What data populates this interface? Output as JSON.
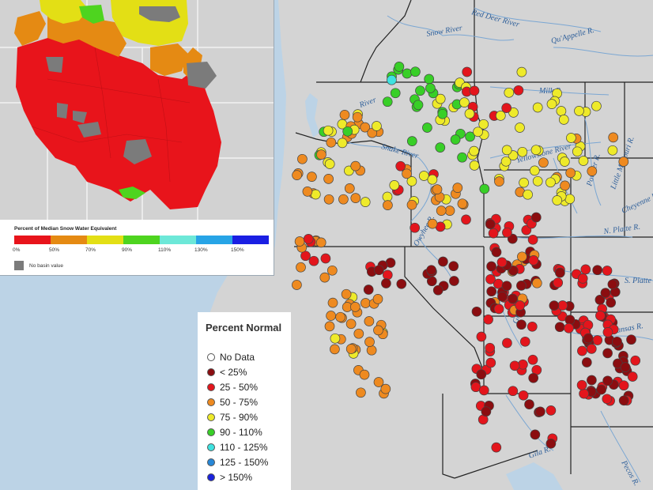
{
  "inset": {
    "title": "Percent of Median Snow Water Equivalent",
    "scale": [
      {
        "label": "0%",
        "color": "#e8141b"
      },
      {
        "label": "50%",
        "color": "#e58a13"
      },
      {
        "label": "70%",
        "color": "#e3df15"
      },
      {
        "label": "90%",
        "color": "#4ed41f"
      },
      {
        "label": "110%",
        "color": "#6de8d8"
      },
      {
        "label": "130%",
        "color": "#27a4e6"
      },
      {
        "label": "150%",
        "color": "#1a1fe3"
      }
    ],
    "no_basin_label": "No basin value",
    "no_basin_color": "#7b7b7b"
  },
  "map": {
    "rivers": [
      "Snow River",
      "Red Deer River",
      "Qu'Appelle R.",
      "Milk R.",
      "Snake River",
      "Yellowstone River",
      "Little Missouri R.",
      "Powder R.",
      "Cheyenne R.",
      "N. Platte R.",
      "S. Platte R.",
      "Owyhee R.",
      "Green R.",
      "Gila R.",
      "Kansas R.",
      "Pecos R.",
      "River"
    ]
  },
  "legend": {
    "title": "Percent Normal",
    "items": [
      {
        "label": "No Data",
        "color": "#ffffff"
      },
      {
        "label": "< 25%",
        "color": "#8b0d10"
      },
      {
        "label": "25 - 50%",
        "color": "#e3151c"
      },
      {
        "label": "50 - 75%",
        "color": "#ee8a20"
      },
      {
        "label": "75 - 90%",
        "color": "#eeea2a"
      },
      {
        "label": "90 - 110%",
        "color": "#38cf27"
      },
      {
        "label": "110 - 125%",
        "color": "#3ee2e0"
      },
      {
        "label": "125 - 150%",
        "color": "#2787d7"
      },
      {
        "label": "> 150%",
        "color": "#1a22dc"
      }
    ]
  }
}
